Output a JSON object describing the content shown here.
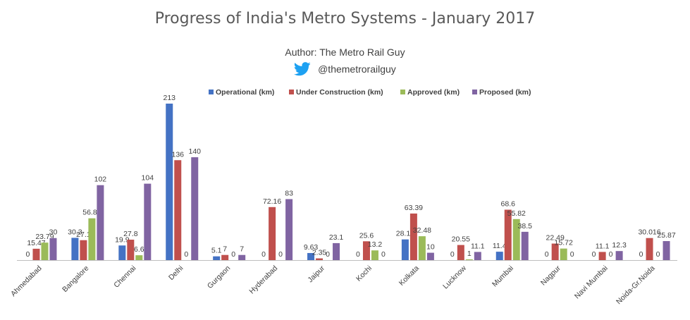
{
  "header": {
    "title": "Progress of India's Metro Systems - January 2017",
    "author": "Author:  The Metro Rail Guy",
    "twitter_handle": "@themetrorailguy",
    "twitter_icon": "twitter-bird-icon"
  },
  "chart_data": {
    "type": "bar",
    "title": "Progress of India's Metro Systems - January 2017",
    "xlabel": "",
    "ylabel": "",
    "ylim": [
      0,
      213
    ],
    "grid": false,
    "legend_position": "top",
    "categories": [
      "Ahmedabad",
      "Bangalore",
      "Chennai",
      "Delhi",
      "Gurgaon",
      "Hyderabad",
      "Jaipur",
      "Kochi",
      "Kolkata",
      "Lucknow",
      "Mumbai",
      "Nagpur",
      "Navi Mumbai",
      "Noida-Gr.Noida"
    ],
    "series": [
      {
        "name": "Operational (km)",
        "color": "#4472C4",
        "values": [
          0,
          30.3,
          19.9,
          213,
          5.1,
          0,
          9.63,
          0,
          28.14,
          0,
          11.4,
          0,
          0,
          0
        ],
        "labels": [
          "0",
          "30.3",
          "19.9",
          "213",
          "5.1",
          "0",
          "9.63",
          "0",
          "28.14",
          "0",
          "11.4",
          "0",
          "0",
          "0"
        ]
      },
      {
        "name": "Under Construction (km)",
        "color": "#C0504D",
        "values": [
          15.47,
          27.1,
          27.8,
          136,
          7,
          72.16,
          2.35,
          25.6,
          63.39,
          20.55,
          68.6,
          22.49,
          11.1,
          30.016
        ],
        "labels": [
          "15.47",
          "27.1",
          "27.8",
          "136",
          "7",
          "72.16",
          "2.35",
          "25.6",
          "63.39",
          "20.55",
          "68.6",
          "22.49",
          "11.1",
          "30.016"
        ]
      },
      {
        "name": "Approved (km)",
        "color": "#9BBB59",
        "values": [
          23.79,
          56.89,
          6.6,
          0,
          0,
          0,
          0,
          13.2,
          32.48,
          1,
          55.82,
          15.72,
          0,
          0
        ],
        "labels": [
          "23.79",
          "56.89",
          "6.6",
          "0",
          "0",
          "0",
          "0",
          "13.2",
          "32.48",
          "1",
          "55.82",
          "15.72",
          "0",
          "0"
        ]
      },
      {
        "name": "Proposed (km)",
        "color": "#8064A2",
        "values": [
          30,
          102,
          104,
          140,
          7,
          83,
          23.1,
          0,
          10,
          11.1,
          38.5,
          0,
          12.3,
          25.87
        ],
        "labels": [
          "30",
          "102",
          "104",
          "140",
          "7",
          "83",
          "23.1",
          "0",
          "10",
          "11.1",
          "38.5",
          "0",
          "12.3",
          "25.87"
        ]
      }
    ]
  }
}
